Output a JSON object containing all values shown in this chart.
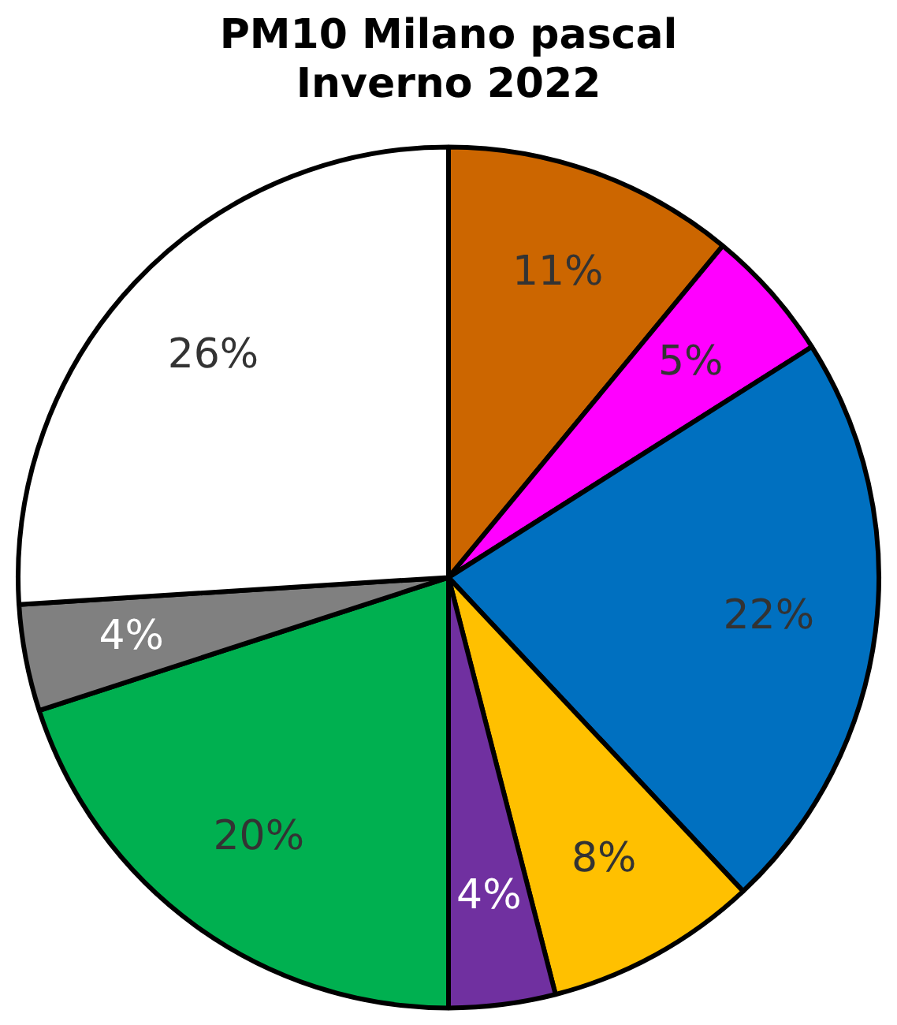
{
  "chart_data": {
    "type": "pie",
    "title": "PM10 Milano pascal\nInverno 2022",
    "categories": [
      null,
      null,
      null,
      null,
      null,
      null,
      null,
      null
    ],
    "values": [
      11,
      5,
      22,
      8,
      4,
      20,
      4,
      26
    ],
    "colors": [
      "#cc6600",
      "#ff00ff",
      "#0070c0",
      "#ffc000",
      "#7030a0",
      "#00b050",
      "#808080",
      "#ffffff"
    ],
    "value_labels": [
      "11%",
      "5%",
      "22%",
      "8%",
      "4%",
      "20%",
      "4%",
      "26%"
    ]
  }
}
